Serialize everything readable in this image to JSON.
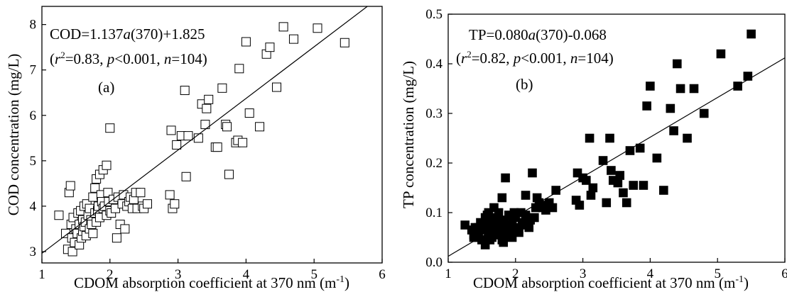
{
  "chart_data": [
    {
      "type": "scatter",
      "panel_label": "(a)",
      "xlabel": "CDOM absorption coefficient at 370 nm (m-1)",
      "ylabel": "COD concentration (mg/L)",
      "xlim": [
        1,
        6
      ],
      "ylim": [
        2.75,
        8.4
      ],
      "xticks": [
        "1",
        "2",
        "3",
        "4",
        "5",
        "6"
      ],
      "yticks": [
        "3",
        "4",
        "5",
        "6",
        "7",
        "8"
      ],
      "equation": "COD=1.137a(370)+1.825",
      "stats": "(r2=0.83, p<0.001, n=104)",
      "fit": {
        "slope": 1.137,
        "intercept": 1.825
      },
      "marker": "open-square",
      "x": [
        1.25,
        1.35,
        1.38,
        1.4,
        1.42,
        1.43,
        1.44,
        1.45,
        1.46,
        1.48,
        1.5,
        1.52,
        1.53,
        1.55,
        1.55,
        1.57,
        1.58,
        1.6,
        1.6,
        1.62,
        1.62,
        1.64,
        1.65,
        1.66,
        1.68,
        1.7,
        1.7,
        1.72,
        1.73,
        1.75,
        1.75,
        1.78,
        1.78,
        1.8,
        1.8,
        1.82,
        1.83,
        1.85,
        1.85,
        1.87,
        1.88,
        1.9,
        1.9,
        1.92,
        1.95,
        1.95,
        1.97,
        1.98,
        2.0,
        2.0,
        2.02,
        2.05,
        2.08,
        2.1,
        2.12,
        2.15,
        2.18,
        2.2,
        2.22,
        2.25,
        2.28,
        2.3,
        2.33,
        2.35,
        2.38,
        2.4,
        2.45,
        2.48,
        2.5,
        2.55,
        2.88,
        2.9,
        2.92,
        2.95,
        2.98,
        3.05,
        3.1,
        3.12,
        3.15,
        3.3,
        3.35,
        3.4,
        3.42,
        3.45,
        3.55,
        3.58,
        3.65,
        3.7,
        3.72,
        3.75,
        3.85,
        3.88,
        3.9,
        3.95,
        4.0,
        4.05,
        4.2,
        4.3,
        4.35,
        4.45,
        4.55,
        4.7,
        5.05,
        5.45
      ],
      "y": [
        3.8,
        3.4,
        3.05,
        4.3,
        4.45,
        3.6,
        3.3,
        3.0,
        3.75,
        3.2,
        3.5,
        3.4,
        3.85,
        3.6,
        3.15,
        3.9,
        3.3,
        3.7,
        3.45,
        4.0,
        3.55,
        3.65,
        3.35,
        4.05,
        3.8,
        3.5,
        3.95,
        3.7,
        3.6,
        4.2,
        3.4,
        3.85,
        4.4,
        3.65,
        4.6,
        3.9,
        4.0,
        4.7,
        3.75,
        4.25,
        4.1,
        4.8,
        3.95,
        4.0,
        4.9,
        3.8,
        4.3,
        4.1,
        5.72,
        3.9,
        3.85,
        4.15,
        3.95,
        3.3,
        4.2,
        3.6,
        4.05,
        4.25,
        3.5,
        4.0,
        4.1,
        4.2,
        3.95,
        4.15,
        4.3,
        3.95,
        4.3,
        4.0,
        3.95,
        4.05,
        4.25,
        5.67,
        3.95,
        4.05,
        5.35,
        5.55,
        6.55,
        4.65,
        5.55,
        5.5,
        6.25,
        5.8,
        6.15,
        6.35,
        5.3,
        5.3,
        6.6,
        5.8,
        5.75,
        4.7,
        5.4,
        5.45,
        7.03,
        5.4,
        7.62,
        6.05,
        5.75,
        7.35,
        7.5,
        6.62,
        7.95,
        7.68,
        7.92,
        7.6
      ]
    },
    {
      "type": "scatter",
      "panel_label": "(b)",
      "xlabel": "CDOM absorption coefficient at 370 nm (m-1)",
      "ylabel": "TP concentration (mg/L)",
      "xlim": [
        1,
        6
      ],
      "ylim": [
        0,
        0.5
      ],
      "xticks": [
        "1",
        "2",
        "3",
        "4",
        "5",
        "6"
      ],
      "yticks": [
        "0.0",
        "0.1",
        "0.2",
        "0.3",
        "0.4",
        "0.5"
      ],
      "equation": "TP=0.080a(370)-0.068",
      "stats": "(r2=0.82, p<0.001, n=104)",
      "fit": {
        "slope": 0.08,
        "intercept": -0.068
      },
      "marker": "filled-square",
      "x": [
        1.25,
        1.35,
        1.38,
        1.4,
        1.42,
        1.45,
        1.48,
        1.5,
        1.52,
        1.55,
        1.55,
        1.58,
        1.6,
        1.6,
        1.62,
        1.62,
        1.65,
        1.65,
        1.68,
        1.7,
        1.7,
        1.72,
        1.72,
        1.75,
        1.75,
        1.78,
        1.8,
        1.8,
        1.82,
        1.85,
        1.85,
        1.88,
        1.9,
        1.9,
        1.92,
        1.95,
        1.95,
        1.98,
        2.0,
        2.0,
        2.05,
        2.1,
        2.15,
        2.15,
        2.2,
        2.22,
        2.25,
        2.3,
        2.32,
        2.35,
        2.4,
        2.45,
        2.5,
        2.55,
        2.6,
        2.9,
        2.92,
        2.95,
        3.0,
        3.05,
        3.1,
        3.12,
        3.3,
        3.35,
        3.4,
        3.42,
        3.45,
        3.55,
        3.6,
        3.65,
        3.7,
        3.75,
        3.85,
        3.9,
        3.95,
        4.0,
        4.1,
        4.2,
        4.3,
        4.35,
        4.4,
        4.45,
        4.55,
        4.65,
        4.8,
        5.05,
        5.3,
        5.45,
        5.5,
        1.58,
        1.68,
        1.78,
        1.88,
        2.08,
        2.28,
        1.45,
        1.62,
        1.92,
        2.12,
        3.15,
        3.52,
        1.82,
        2.42,
        1.38
      ],
      "y": [
        0.075,
        0.065,
        0.055,
        0.07,
        0.05,
        0.06,
        0.08,
        0.045,
        0.065,
        0.035,
        0.09,
        0.075,
        0.06,
        0.1,
        0.055,
        0.085,
        0.07,
        0.05,
        0.11,
        0.065,
        0.09,
        0.06,
        0.08,
        0.055,
        0.1,
        0.07,
        0.045,
        0.13,
        0.085,
        0.06,
        0.17,
        0.075,
        0.055,
        0.095,
        0.065,
        0.08,
        0.05,
        0.1,
        0.07,
        0.09,
        0.06,
        0.08,
        0.135,
        0.095,
        0.07,
        0.085,
        0.18,
        0.11,
        0.13,
        0.12,
        0.11,
        0.105,
        0.12,
        0.11,
        0.145,
        0.125,
        0.18,
        0.115,
        0.17,
        0.165,
        0.25,
        0.135,
        0.205,
        0.12,
        0.25,
        0.185,
        0.165,
        0.175,
        0.14,
        0.12,
        0.225,
        0.155,
        0.23,
        0.155,
        0.315,
        0.355,
        0.21,
        0.145,
        0.31,
        0.265,
        0.4,
        0.35,
        0.25,
        0.35,
        0.3,
        0.42,
        0.355,
        0.375,
        0.46,
        0.095,
        0.085,
        0.075,
        0.065,
        0.1,
        0.09,
        0.07,
        0.045,
        0.06,
        0.075,
        0.15,
        0.16,
        0.04,
        0.115,
        0.05
      ]
    }
  ]
}
